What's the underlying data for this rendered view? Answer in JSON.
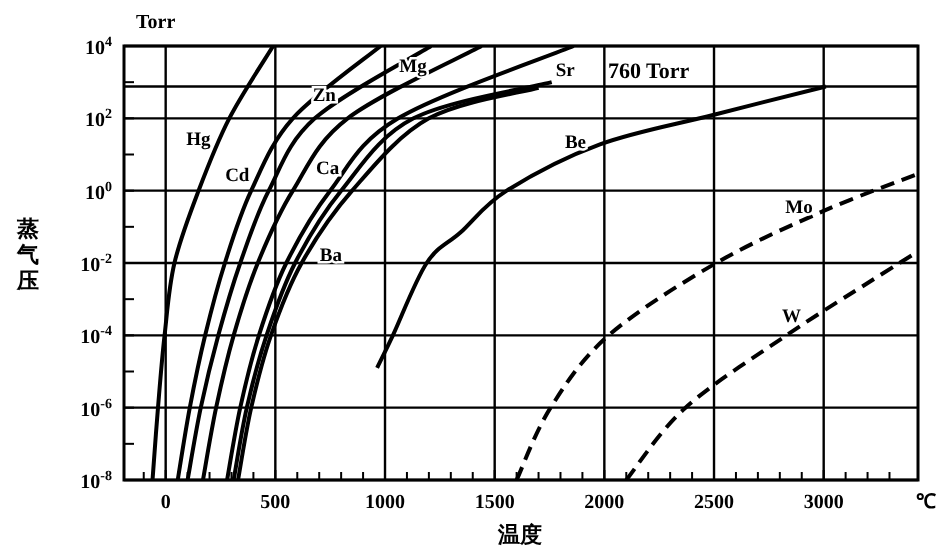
{
  "chart_data": {
    "type": "line",
    "xlabel": "温度",
    "ylabel": "蒸气压",
    "annotations": [
      "Torr",
      "℃"
    ],
    "xlim": [
      -190,
      3430
    ],
    "ylim": [
      1e-08,
      10000
    ],
    "log": "y",
    "grid": true,
    "marker": "none",
    "line_style": "solid",
    "xticks": [
      0,
      500,
      1000,
      1500,
      2000,
      2500,
      3000,
      {
        "value": -100,
        "label": null
      },
      {
        "value": 100,
        "label": null
      },
      {
        "value": 200,
        "label": null
      },
      {
        "value": 300,
        "label": null
      },
      {
        "value": 400,
        "label": null
      },
      {
        "value": 600,
        "label": null
      },
      {
        "value": 700,
        "label": null
      },
      {
        "value": 800,
        "label": null
      },
      {
        "value": 900,
        "label": null
      },
      {
        "value": 1100,
        "label": null
      },
      {
        "value": 1200,
        "label": null
      },
      {
        "value": 1300,
        "label": null
      },
      {
        "value": 1400,
        "label": null
      },
      {
        "value": 1600,
        "label": null
      },
      {
        "value": 1700,
        "label": null
      },
      {
        "value": 1800,
        "label": null
      },
      {
        "value": 1900,
        "label": null
      },
      {
        "value": 2100,
        "label": null
      },
      {
        "value": 2200,
        "label": null
      },
      {
        "value": 2300,
        "label": null
      },
      {
        "value": 2400,
        "label": null
      },
      {
        "value": 2600,
        "label": null
      },
      {
        "value": 2700,
        "label": null
      },
      {
        "value": 2800,
        "label": null
      },
      {
        "value": 2900,
        "label": null
      },
      {
        "value": 3100,
        "label": null
      },
      {
        "value": 3200,
        "label": null
      },
      {
        "value": 3300,
        "label": null
      }
    ],
    "yticks": [
      {
        "value": 1e-08,
        "label": "10$^{-8}$"
      },
      {
        "value": 1e-06,
        "label": "10$^{-6}$"
      },
      {
        "value": 0.0001,
        "label": "10$^{-4}$"
      },
      {
        "value": 0.01,
        "label": "10$^{-2}$"
      },
      {
        "value": 1,
        "label": "10$^{0}$"
      },
      {
        "value": 100,
        "label": "10$^{2}$"
      },
      {
        "value": 10000,
        "label": "10$^{4}$"
      },
      {
        "value": 1e-07,
        "label": null
      },
      {
        "value": 1e-05,
        "label": null
      },
      {
        "value": 0.001,
        "label": null
      },
      {
        "value": 0.1,
        "label": null
      },
      {
        "value": 10,
        "label": null
      },
      {
        "value": 1000,
        "label": null
      }
    ],
    "ref_lines": [
      {
        "axis": "y",
        "value": 760,
        "label": "760 Torr"
      }
    ],
    "series": [
      {
        "name": "Hg",
        "color": "#000000",
        "x": [
          -60,
          -35,
          -5,
          40,
          150,
          290,
          490
        ],
        "values": [
          1e-08,
          1e-06,
          0.0001,
          0.01,
          1,
          100,
          10000
        ]
      },
      {
        "name": "Cd",
        "color": "#000000",
        "x": [
          55,
          110,
          180,
          270,
          390,
          580,
          980
        ],
        "values": [
          1e-08,
          1e-06,
          0.0001,
          0.01,
          1,
          100,
          10000
        ]
      },
      {
        "name": "Zn",
        "color": "#000000",
        "x": [
          100,
          160,
          240,
          340,
          470,
          680,
          1210
        ],
        "values": [
          1e-08,
          1e-06,
          0.0001,
          0.01,
          1,
          100,
          10000
        ]
      },
      {
        "name": "Mg",
        "color": "#000000",
        "x": [
          170,
          230,
          310,
          420,
          580,
          830,
          1440
        ],
        "values": [
          1e-08,
          1e-06,
          0.0001,
          0.01,
          1,
          100,
          10000
        ]
      },
      {
        "name": "Ca",
        "color": "#000000",
        "x": [
          280,
          340,
          425,
          550,
          750,
          1060,
          1860
        ],
        "values": [
          1e-08,
          1e-06,
          0.0001,
          0.01,
          1,
          100,
          10000
        ]
      },
      {
        "name": "Sr",
        "color": "#000000",
        "x": [
          310,
          370,
          460,
          590,
          800,
          1130,
          1760
        ],
        "values": [
          1e-08,
          1e-06,
          0.0001,
          0.01,
          1,
          100,
          1000
        ]
      },
      {
        "name": "Ba",
        "color": "#000000",
        "x": [
          330,
          390,
          480,
          620,
          850,
          1200,
          1700
        ],
        "values": [
          1e-08,
          1e-06,
          0.0001,
          0.01,
          1,
          100,
          700
        ]
      },
      {
        "name": "Be",
        "color": "#000000",
        "x": [
          964,
          1036,
          1190,
          1345,
          1555,
          1980,
          2500,
          3010
        ],
        "values": [
          1.26e-05,
          0.0001,
          0.01,
          0.0708,
          1,
          19.1,
          126,
          759
        ]
      },
      {
        "name": "Mo",
        "color": "#000000",
        "line_style": "dashed",
        "x": [
          1600,
          1755,
          2020,
          2510,
          3000,
          3420
        ],
        "values": [
          1e-08,
          1e-06,
          0.0001,
          0.01,
          0.275,
          2.75
        ]
      },
      {
        "name": "W",
        "color": "#000000",
        "line_style": "dashed",
        "x": [
          2100,
          2370,
          2830,
          3230,
          3420
        ],
        "values": [
          1e-08,
          1e-06,
          0.0001,
          0.00363,
          0.0191
        ]
      }
    ]
  }
}
